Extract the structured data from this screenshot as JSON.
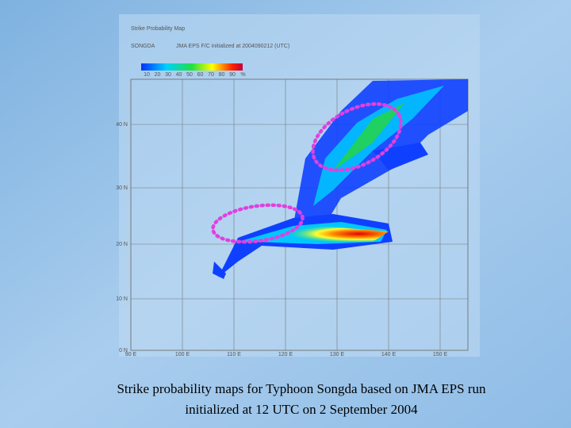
{
  "map": {
    "title": "Strike Probability Map",
    "storm": "SONGDA",
    "run": "JMA EPS F/C initialized at 2004090212 (UTC)",
    "colorbar_labels": [
      "10",
      "20",
      "30",
      "40",
      "50",
      "60",
      "70",
      "80",
      "90",
      "%"
    ],
    "lat_labels": [
      "40 N",
      "30 N",
      "20 N",
      "10 N",
      "0 N"
    ],
    "lon_labels": [
      "90 E",
      "100 E",
      "110 E",
      "120 E",
      "130 E",
      "140 E",
      "150 E"
    ]
  },
  "caption": {
    "line1": "Strike probability maps for Typhoon Songda based on JMA EPS run",
    "line2": "initialized at 12 UTC on 2 September 2004"
  }
}
